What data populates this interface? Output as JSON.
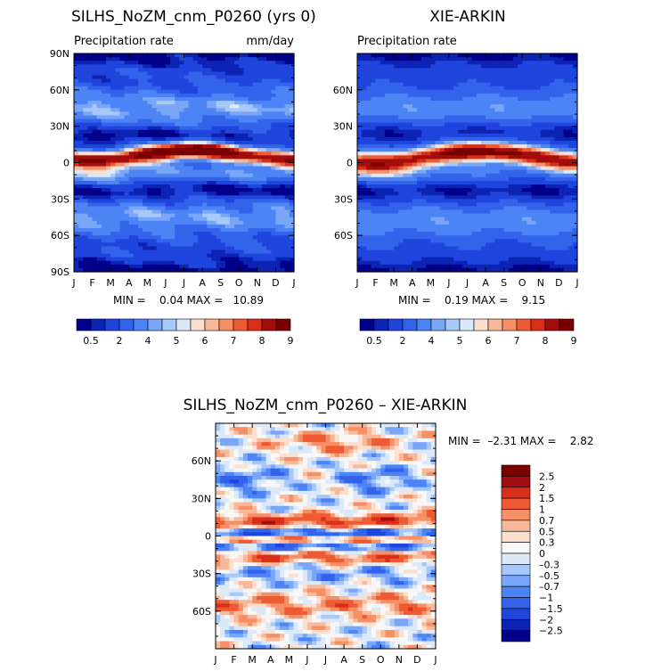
{
  "palette": {
    "seq": [
      "#00008a",
      "#0c23b4",
      "#1f45dd",
      "#3363eb",
      "#4c84f5",
      "#7aa6f7",
      "#a8c7fa",
      "#dce9f8",
      "#fbe0d0",
      "#f8b89a",
      "#f58f66",
      "#ee5a33",
      "#d92e1a",
      "#a30d0d",
      "#7a0000"
    ],
    "div": [
      "#00008a",
      "#0c23b4",
      "#1f45dd",
      "#3363eb",
      "#4c84f5",
      "#7aa6f7",
      "#a8c7fa",
      "#dce9f8",
      "#f7f7f7",
      "#fbe0d0",
      "#f8b89a",
      "#f58f66",
      "#ee5a33",
      "#d92e1a",
      "#a30d0d",
      "#7a0000"
    ]
  },
  "chart_data": [
    {
      "type": "heatmap",
      "id": "model",
      "title": "SILHS_NoZM_cnm_P0260 (yrs 0)",
      "left_label": "Precipitation rate",
      "units": "mm/day",
      "x_ticks": [
        "J",
        "F",
        "M",
        "A",
        "M",
        "J",
        "J",
        "A",
        "S",
        "O",
        "N",
        "D",
        "J"
      ],
      "y_ticks": [
        "90N",
        "60N",
        "30N",
        "0",
        "30S",
        "60S",
        "90S"
      ],
      "stats": "MIN =    0.04 MAX =   10.89",
      "colorbar_labels": [
        "0.5",
        "2",
        "4",
        "5",
        "6",
        "7",
        "8",
        "9"
      ]
    },
    {
      "type": "heatmap",
      "id": "obs",
      "title": "XIE-ARKIN",
      "left_label": "Precipitation rate",
      "x_ticks": [
        "J",
        "F",
        "M",
        "A",
        "M",
        "J",
        "J",
        "A",
        "S",
        "O",
        "N",
        "D",
        "J"
      ],
      "y_ticks": [
        "60N",
        "30N",
        "0",
        "30S",
        "60S"
      ],
      "stats": "MIN =    0.19 MAX =    9.15",
      "colorbar_labels": [
        "0.5",
        "2",
        "4",
        "5",
        "6",
        "7",
        "8",
        "9"
      ]
    },
    {
      "type": "heatmap",
      "id": "diff",
      "title": "SILHS_NoZM_cnm_P0260 – XIE-ARKIN",
      "x_ticks": [
        "J",
        "F",
        "M",
        "A",
        "M",
        "J",
        "J",
        "A",
        "S",
        "O",
        "N",
        "D",
        "J"
      ],
      "y_ticks": [
        "60N",
        "30N",
        "0",
        "30S",
        "60S"
      ],
      "stats": "MIN =  –2.31 MAX =    2.82",
      "colorbar_labels": [
        "2.5",
        "2",
        "1.5",
        "1",
        "0.7",
        "0.5",
        "0.3",
        "0",
        "–0.3",
        "–0.5",
        "–0.7",
        "−1",
        "−1.5",
        "−2",
        "−2.5"
      ]
    }
  ]
}
